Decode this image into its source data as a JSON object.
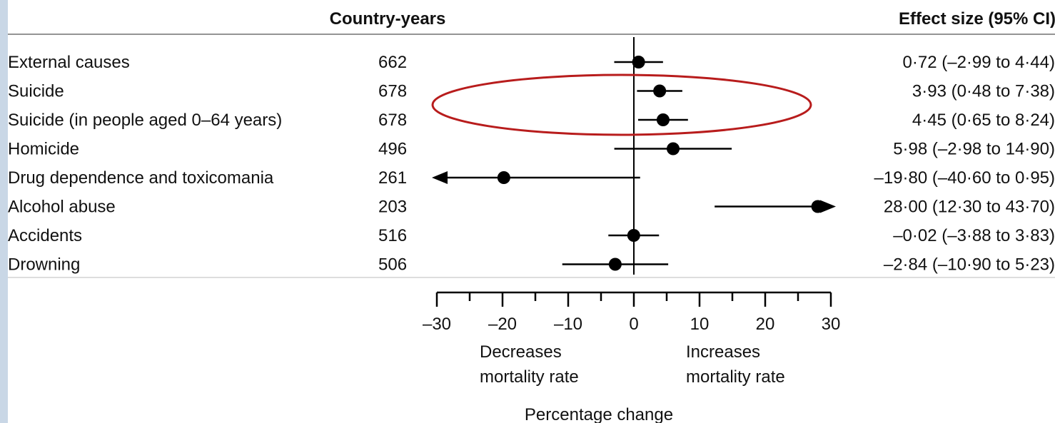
{
  "chart_data": {
    "type": "forest",
    "columns": {
      "n_header": "Country-years",
      "effect_header": "Effect size (95% CI)"
    },
    "rows": [
      {
        "label": "External causes",
        "n": "662",
        "estimate": 0.72,
        "ci_low": -2.99,
        "ci_high": 4.44,
        "effect_text": "0·72 (–2·99 to 4·44)"
      },
      {
        "label": "Suicide",
        "n": "678",
        "estimate": 3.93,
        "ci_low": 0.48,
        "ci_high": 7.38,
        "effect_text": "3·93 (0·48 to 7·38)"
      },
      {
        "label": "Suicide (in people aged 0–64 years)",
        "n": "678",
        "estimate": 4.45,
        "ci_low": 0.65,
        "ci_high": 8.24,
        "effect_text": "4·45 (0·65 to 8·24)"
      },
      {
        "label": "Homicide",
        "n": "496",
        "estimate": 5.98,
        "ci_low": -2.98,
        "ci_high": 14.9,
        "effect_text": "5·98 (–2·98 to 14·90)"
      },
      {
        "label": "Drug dependence and toxicomania",
        "n": "261",
        "estimate": -19.8,
        "ci_low": -40.6,
        "ci_high": 0.95,
        "effect_text": "–19·80 (–40·60 to 0·95)"
      },
      {
        "label": "Alcohol abuse",
        "n": "203",
        "estimate": 28.0,
        "ci_low": 12.3,
        "ci_high": 43.7,
        "effect_text": "28·00 (12·30 to 43·70)"
      },
      {
        "label": "Accidents",
        "n": "516",
        "estimate": -0.02,
        "ci_low": -3.88,
        "ci_high": 3.83,
        "effect_text": "–0·02 (–3·88 to 3·83)"
      },
      {
        "label": "Drowning",
        "n": "506",
        "estimate": -2.84,
        "ci_low": -10.9,
        "ci_high": 5.23,
        "effect_text": "–2·84 (–10·90 to 5·23)"
      }
    ],
    "xaxis": {
      "range": [
        -30,
        30
      ],
      "ticks": [
        -30,
        -20,
        -10,
        0,
        10,
        20,
        30
      ],
      "minor_ticks": [
        -25,
        -15,
        -5,
        5,
        15,
        25
      ],
      "tick_labels": [
        "–30",
        "–20",
        "–10",
        "0",
        "10",
        "20",
        "30"
      ],
      "title": "Percentage change",
      "left_note": [
        "Decreases",
        "mortality rate"
      ],
      "right_note": [
        "Increases",
        "mortality rate"
      ]
    },
    "highlight": {
      "shape": "ellipse",
      "rows": [
        "Suicide",
        "Suicide (in people aged 0–64 years)"
      ],
      "color": "#b81c1c"
    },
    "colors": {
      "marker": "#000000",
      "text": "#111111"
    }
  }
}
